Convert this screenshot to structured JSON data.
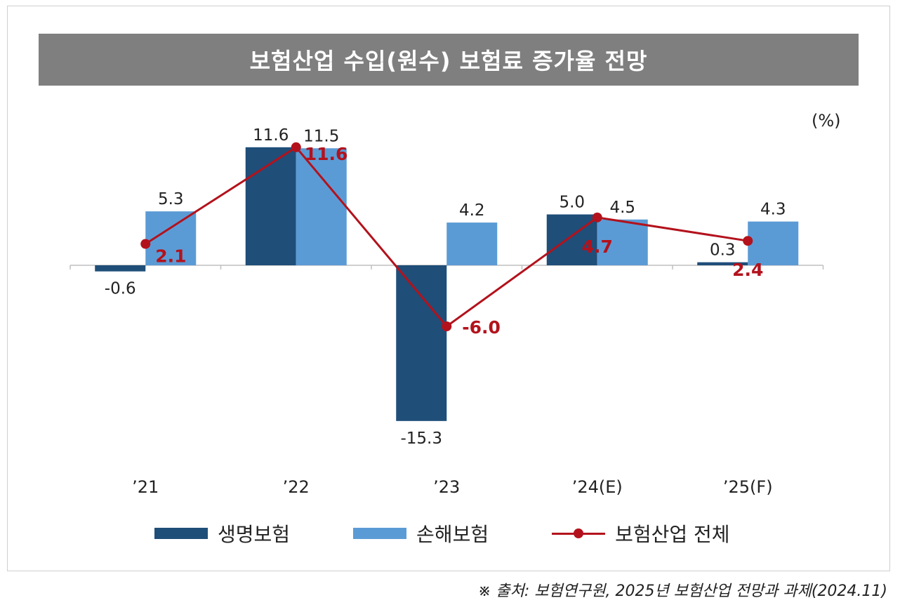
{
  "title": "보험산업 수입(원수) 보험료 증가율 전망",
  "unit": "(%)",
  "source": "※ 출처: 보험연구원, 2025년 보험산업 전망과 과제(2024.11)",
  "colors": {
    "life": "#1f4e79",
    "nonlife": "#5b9bd5",
    "total": "#b3121c"
  },
  "chart_data": {
    "type": "bar",
    "categories": [
      "’21",
      "’22",
      "’23",
      "’24(E)",
      "’25(F)"
    ],
    "series": [
      {
        "name": "생명보험",
        "type": "bar",
        "values": [
          -0.6,
          11.6,
          -15.3,
          5.0,
          0.3
        ],
        "labels": [
          "-0.6",
          "11.6",
          "-15.3",
          "5.0",
          "0.3"
        ]
      },
      {
        "name": "손해보험",
        "type": "bar",
        "values": [
          5.3,
          11.5,
          4.2,
          4.5,
          4.3
        ],
        "labels": [
          "5.3",
          "11.5",
          "4.2",
          "4.5",
          "4.3"
        ]
      },
      {
        "name": "보험산업 전체",
        "type": "line",
        "values": [
          2.1,
          11.6,
          -6.0,
          4.7,
          2.4
        ],
        "labels": [
          "2.1",
          "11.6",
          "-6.0",
          "4.7",
          "2.4"
        ]
      }
    ],
    "ylabel": "(%)",
    "ylim": [
      -16,
      13
    ],
    "grid": false,
    "legend": "bottom"
  }
}
